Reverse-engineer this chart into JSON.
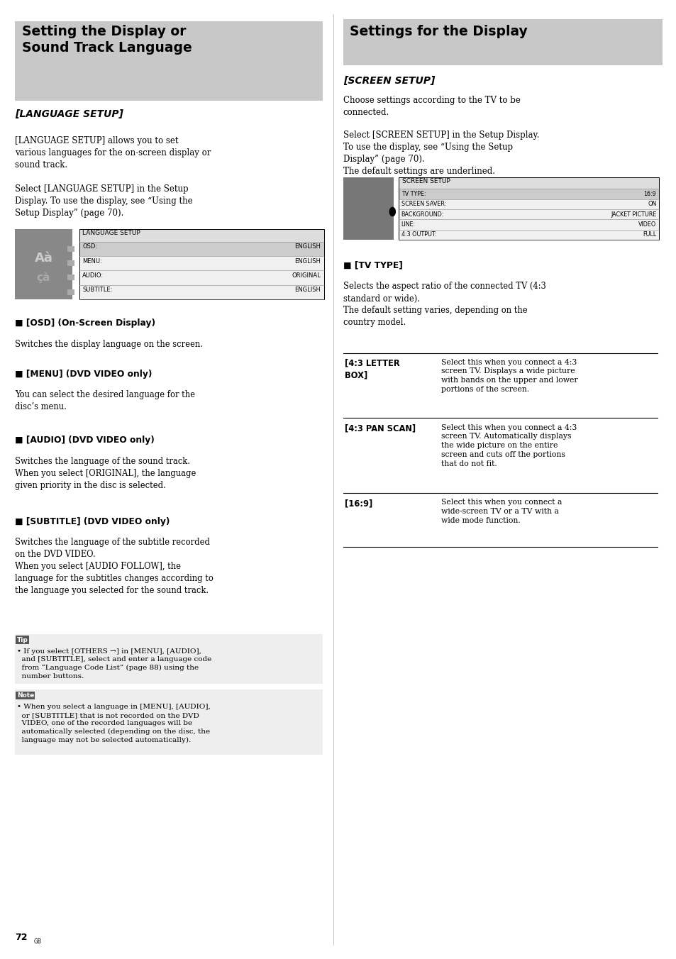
{
  "page_bg": "#ffffff",
  "left_header_bg": "#c8c8c8",
  "right_header_bg": "#c8c8c8",
  "lang_setup_items": [
    [
      "OSD:",
      "ENGLISH"
    ],
    [
      "MENU:",
      "ENGLISH"
    ],
    [
      "AUDIO:",
      "ORIGINAL"
    ],
    [
      "SUBTITLE:",
      "ENGLISH"
    ]
  ],
  "screen_setup_items": [
    [
      "TV TYPE:",
      "16:9"
    ],
    [
      "SCREEN SAVER:",
      "ON"
    ],
    [
      "BACKGROUND:",
      "JACKET PICTURE"
    ],
    [
      "LINE:",
      "VIDEO"
    ],
    [
      "4:3 OUTPUT:",
      "FULL"
    ]
  ],
  "sections_left": [
    {
      "head": "■ [OSD] (On-Screen Display)",
      "body": "Switches the display language on the screen."
    },
    {
      "head": "■ [MENU] (DVD VIDEO only)",
      "body": "You can select the desired language for the\ndisc’s menu."
    },
    {
      "head": "■ [AUDIO] (DVD VIDEO only)",
      "body": "Switches the language of the sound track.\nWhen you select [ORIGINAL], the language\ngiven priority in the disc is selected."
    },
    {
      "head": "■ [SUBTITLE] (DVD VIDEO only)",
      "body": "Switches the language of the subtitle recorded\non the DVD VIDEO.\nWhen you select [AUDIO FOLLOW], the\nlanguage for the subtitles changes according to\nthe language you selected for the sound track."
    }
  ],
  "tv_table": [
    {
      "label": "[4:3 LETTER\nBOX]",
      "desc": "Select this when you connect a 4:3\nscreen TV. Displays a wide picture\nwith bands on the upper and lower\nportions of the screen."
    },
    {
      "label": "[4:3 PAN SCAN]",
      "desc": "Select this when you connect a 4:3\nscreen TV. Automatically displays\nthe wide picture on the entire\nscreen and cuts off the portions\nthat do not fit."
    },
    {
      "label": "[16:9]",
      "desc": "Select this when you connect a\nwide-screen TV or a TV with a\nwide mode function."
    }
  ],
  "page_num": "72"
}
